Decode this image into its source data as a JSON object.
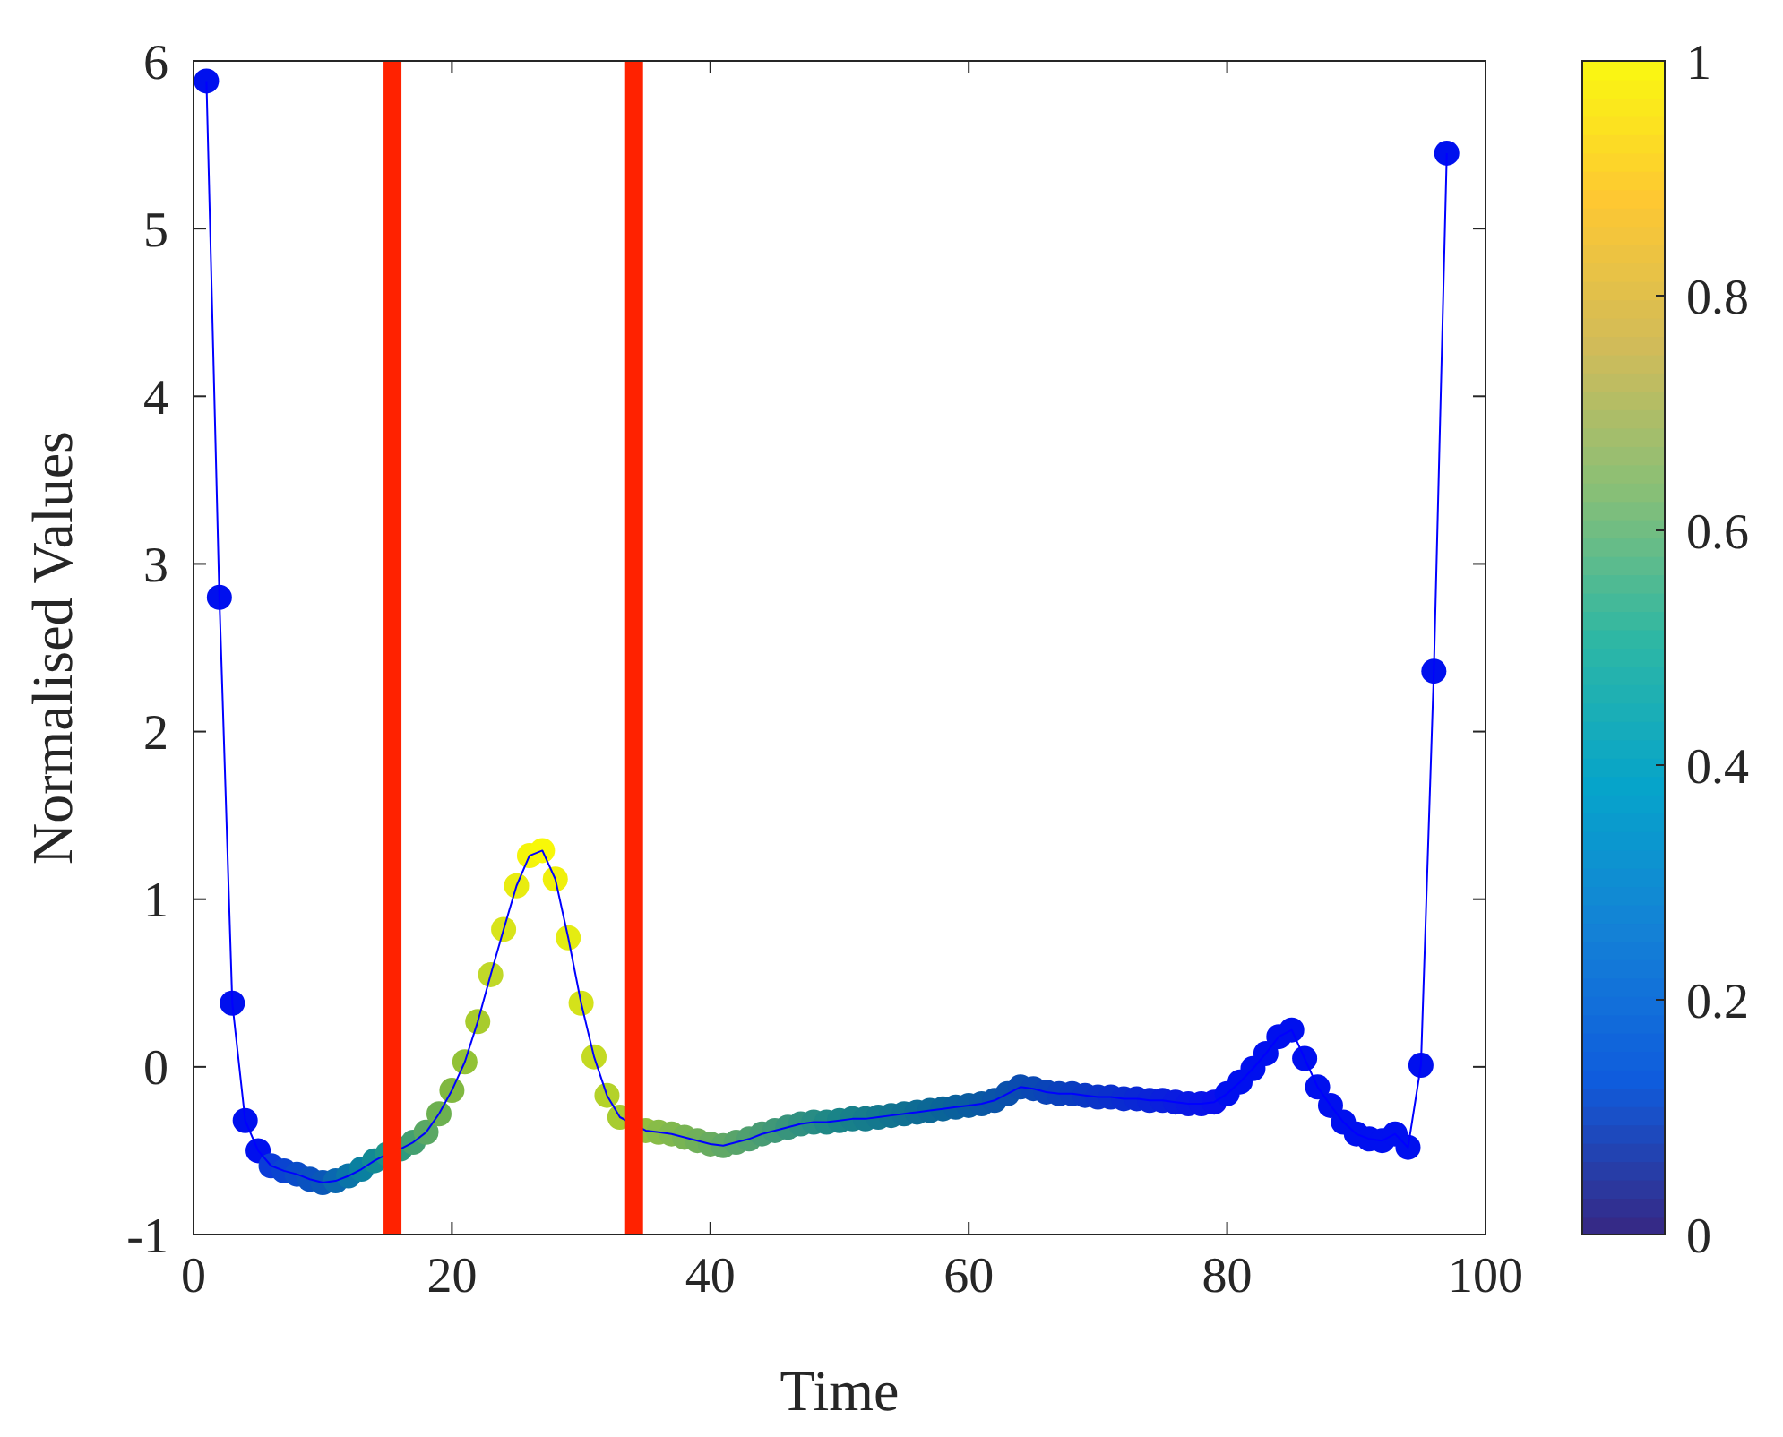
{
  "chart_data": {
    "type": "scatter",
    "xlabel": "Time",
    "ylabel": "Normalised Values",
    "xlim": [
      0,
      100
    ],
    "ylim": [
      -1,
      6
    ],
    "xticks": [
      0,
      20,
      40,
      60,
      80,
      100
    ],
    "yticks": [
      {
        "value": -1,
        "label": "-1"
      },
      0,
      1,
      2,
      3,
      4,
      5,
      6
    ],
    "clim": [
      0,
      1
    ],
    "cticks": [
      0,
      0.2,
      0.4,
      0.6,
      0.8,
      1
    ],
    "grid": false,
    "line_style": "solid",
    "x": [
      1,
      2,
      3,
      4,
      5,
      6,
      7,
      8,
      9,
      10,
      11,
      12,
      13,
      14,
      15,
      16,
      17,
      18,
      19,
      20,
      21,
      22,
      23,
      24,
      25,
      26,
      27,
      28,
      29,
      30,
      31,
      32,
      33,
      34,
      35,
      36,
      37,
      38,
      39,
      40,
      41,
      42,
      43,
      44,
      45,
      46,
      47,
      48,
      49,
      50,
      51,
      52,
      53,
      54,
      55,
      56,
      57,
      58,
      59,
      60,
      61,
      62,
      63,
      64,
      65,
      66,
      67,
      68,
      69,
      70,
      71,
      72,
      73,
      74,
      75,
      76,
      77,
      78,
      79,
      80,
      81,
      82,
      83,
      84,
      85,
      86,
      87,
      88,
      89,
      90,
      91,
      92,
      93,
      94,
      95,
      96,
      97
    ],
    "series": [
      {
        "marker": "circle",
        "values": [
          5.88,
          2.8,
          0.38,
          -0.32,
          -0.5,
          -0.59,
          -0.62,
          -0.64,
          -0.67,
          -0.69,
          -0.68,
          -0.65,
          -0.61,
          -0.56,
          -0.52,
          -0.49,
          -0.45,
          -0.39,
          -0.28,
          -0.14,
          0.03,
          0.27,
          0.55,
          0.82,
          1.08,
          1.26,
          1.29,
          1.12,
          0.77,
          0.38,
          0.06,
          -0.17,
          -0.3,
          null,
          -0.38,
          -0.39,
          -0.4,
          -0.42,
          -0.44,
          -0.46,
          -0.47,
          -0.45,
          -0.43,
          -0.4,
          -0.38,
          -0.36,
          -0.34,
          -0.33,
          -0.33,
          -0.32,
          -0.31,
          -0.31,
          -0.3,
          -0.29,
          -0.28,
          -0.27,
          -0.26,
          -0.25,
          -0.24,
          -0.23,
          -0.22,
          -0.2,
          -0.16,
          -0.12,
          -0.13,
          -0.15,
          -0.16,
          -0.16,
          -0.17,
          -0.18,
          -0.18,
          -0.19,
          -0.19,
          -0.2,
          -0.2,
          -0.21,
          -0.22,
          -0.22,
          -0.21,
          -0.16,
          -0.09,
          -0.01,
          0.08,
          0.18,
          0.22,
          0.05,
          -0.12,
          -0.23,
          -0.33,
          -0.4,
          -0.43,
          -0.44,
          -0.4,
          -0.48,
          0.01,
          2.36,
          5.45
        ],
        "colors": [
          "#0010ee",
          "#0010ee",
          "#0010ee",
          "#0010ee",
          "#0010ee",
          "#0a3cd8",
          "#0a44d0",
          "#0a4cc8",
          "#0a52c0",
          "#0a58b8",
          "#0a68b0",
          "#0a74a8",
          "#0a80a0",
          "#128a94",
          "#1e948a",
          "#2e9a7e",
          "#44a070",
          "#5aa864",
          "#6cb050",
          "#80b840",
          "#92c236",
          "#a8cc2c",
          "#c0d828",
          "#d8e41a",
          "#e8ec10",
          "#f4f40a",
          "#f8f808",
          "#f0f00c",
          "#e4ec12",
          "#d4e21a",
          "#c4da22",
          "#b4d22a",
          "#a8cc30",
          null,
          "#92c040",
          "#88bc48",
          "#80b84e",
          "#78b454",
          "#70b05a",
          "#68ac60",
          "#60a866",
          "#58a46a",
          "#50a070",
          "#489c74",
          "#409878",
          "#38947c",
          "#309080",
          "#288c84",
          "#208886",
          "#1a8488",
          "#18808a",
          "#167c8c",
          "#14788e",
          "#127490",
          "#107092",
          "#0e6c94",
          "#0c6896",
          "#0a6498",
          "#0a609c",
          "#0a5ca0",
          "#0a58a4",
          "#0a54a8",
          "#0a50ac",
          "#0a4cb0",
          "#0a48b4",
          "#0a44b8",
          "#0a40bc",
          "#0a3cc0",
          "#0a38c4",
          "#0a34c8",
          "#0a30cc",
          "#0a2cd0",
          "#0a28d4",
          "#0a24d8",
          "#0a20dc",
          "#0a1ce0",
          "#0a18e4",
          "#0a14e8",
          "#0a10ec",
          "#0010ee",
          "#0010ee",
          "#0010ee",
          "#0010ee",
          "#0010ee",
          "#0010ee",
          "#0010ee",
          "#0010ee",
          "#0010ee",
          "#0010ee",
          "#0010ee",
          "#0010ee",
          "#0010ee",
          "#0010ee",
          "#0010ee",
          "#0010ee",
          "#0010ee",
          "#0010ee"
        ]
      },
      {
        "type": "line",
        "marker": "none",
        "color": "#0000ff",
        "values": [
          5.88,
          2.8,
          0.38,
          -0.32,
          -0.5,
          -0.59,
          -0.62,
          -0.64,
          -0.67,
          -0.69,
          -0.68,
          -0.65,
          -0.61,
          -0.56,
          -0.52,
          -0.49,
          -0.45,
          -0.39,
          -0.28,
          -0.14,
          0.03,
          0.27,
          0.55,
          0.82,
          1.08,
          1.26,
          1.29,
          1.12,
          0.77,
          0.38,
          0.06,
          -0.17,
          -0.3,
          null,
          -0.38,
          -0.39,
          -0.4,
          -0.42,
          -0.44,
          -0.46,
          -0.47,
          -0.45,
          -0.43,
          -0.4,
          -0.38,
          -0.36,
          -0.34,
          -0.33,
          -0.33,
          -0.32,
          -0.31,
          -0.31,
          -0.3,
          -0.29,
          -0.28,
          -0.27,
          -0.26,
          -0.25,
          -0.24,
          -0.23,
          -0.22,
          -0.2,
          -0.16,
          -0.12,
          -0.13,
          -0.15,
          -0.16,
          -0.16,
          -0.17,
          -0.18,
          -0.18,
          -0.19,
          -0.19,
          -0.2,
          -0.2,
          -0.21,
          -0.22,
          -0.22,
          -0.21,
          -0.16,
          -0.09,
          -0.01,
          0.08,
          0.18,
          0.22,
          0.05,
          -0.12,
          -0.23,
          -0.33,
          -0.4,
          -0.43,
          -0.44,
          -0.4,
          -0.48,
          0.01,
          2.36,
          5.45
        ]
      }
    ],
    "ref_lines": [
      {
        "axis": "x",
        "value": 15.4,
        "color": "#ff2200"
      },
      {
        "axis": "x",
        "value": 34.1,
        "color": "#ff2200"
      }
    ]
  }
}
